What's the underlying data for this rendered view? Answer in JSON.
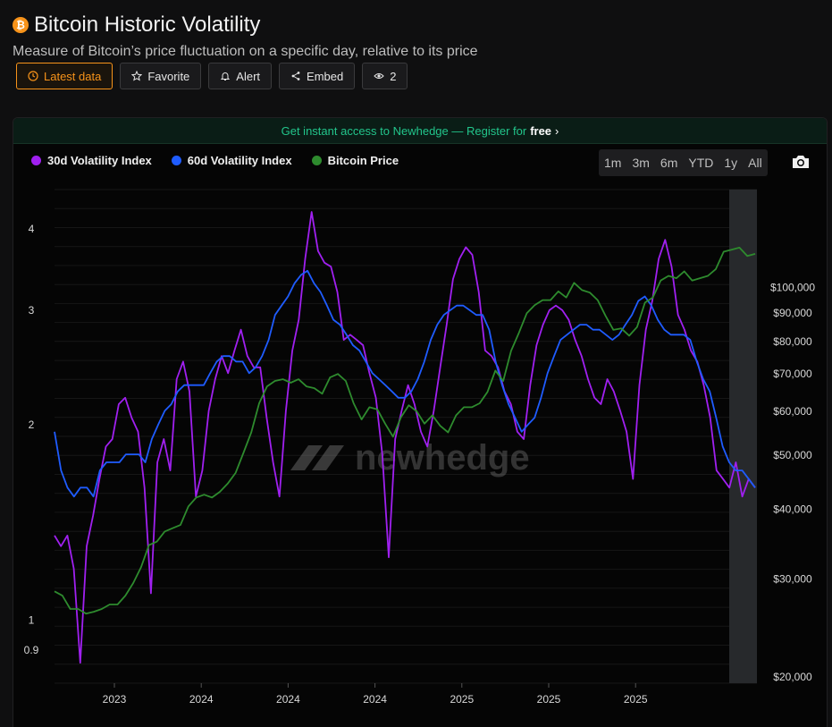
{
  "header": {
    "coin_badge": "₿",
    "title": "Bitcoin Historic Volatility",
    "subtitle": "Measure of Bitcoin’s price fluctuation on a specific day, relative to its price"
  },
  "actions": {
    "latest_data": "Latest data",
    "favorite": "Favorite",
    "alert": "Alert",
    "embed": "Embed",
    "views": "2"
  },
  "banner": {
    "text": "Get instant access to Newhedge — Register for",
    "free": "free",
    "chevron": "›"
  },
  "ranges": [
    "1m",
    "3m",
    "6m",
    "YTD",
    "1y",
    "All"
  ],
  "watermark": "newhedge",
  "colors": {
    "accent": "#f7931a",
    "vol30": "#a020f0",
    "vol60": "#1f5cff",
    "price": "#2e8b2e",
    "banner_text": "#22c58b"
  },
  "chart_data": {
    "type": "line",
    "x_ticks": [
      "2023",
      "2024",
      "2024",
      "2024",
      "2025",
      "2025",
      "2025"
    ],
    "left_axis": {
      "scale": "log",
      "ticks": [
        "0.9",
        "1",
        "2",
        "3",
        "4"
      ]
    },
    "right_axis": {
      "scale": "log",
      "ticks": [
        "$20,000",
        "$30,000",
        "$40,000",
        "$50,000",
        "$60,000",
        "$70,000",
        "$80,000",
        "$90,000",
        "$100,000"
      ]
    },
    "series": [
      {
        "name": "30d Volatility Index",
        "color": "#a020f0",
        "values": [
          1.35,
          1.3,
          1.35,
          1.2,
          0.86,
          1.3,
          1.45,
          1.65,
          1.85,
          1.9,
          2.15,
          2.2,
          2.05,
          1.95,
          1.6,
          1.1,
          1.75,
          1.9,
          1.7,
          2.35,
          2.5,
          2.25,
          1.55,
          1.7,
          2.1,
          2.35,
          2.55,
          2.4,
          2.6,
          2.8,
          2.55,
          2.45,
          2.45,
          2.05,
          1.75,
          1.55,
          2.1,
          2.6,
          2.9,
          3.6,
          4.25,
          3.7,
          3.55,
          3.5,
          3.2,
          2.7,
          2.75,
          2.7,
          2.65,
          2.4,
          2.2,
          1.8,
          1.25,
          1.9,
          2.1,
          2.3,
          2.15,
          1.95,
          1.85,
          2.1,
          2.45,
          2.85,
          3.35,
          3.6,
          3.75,
          3.65,
          3.2,
          2.6,
          2.55,
          2.45,
          2.25,
          2.15,
          1.95,
          1.9,
          2.3,
          2.65,
          2.85,
          3.0,
          3.05,
          3.0,
          2.9,
          2.7,
          2.55,
          2.35,
          2.2,
          2.15,
          2.35,
          2.25,
          2.1,
          1.95,
          1.65,
          2.3,
          2.8,
          3.1,
          3.6,
          3.85,
          3.5,
          2.95,
          2.8,
          2.6,
          2.5,
          2.3,
          2.05,
          1.7,
          1.65,
          1.6,
          1.75,
          1.55,
          1.65,
          1.6
        ],
        "x_range": [
          0,
          1
        ]
      },
      {
        "name": "60d Volatility Index",
        "color": "#1f5cff",
        "values": [
          1.95,
          1.7,
          1.6,
          1.55,
          1.6,
          1.6,
          1.55,
          1.7,
          1.75,
          1.75,
          1.75,
          1.8,
          1.8,
          1.8,
          1.75,
          1.9,
          2.0,
          2.1,
          2.15,
          2.25,
          2.3,
          2.3,
          2.3,
          2.3,
          2.4,
          2.5,
          2.55,
          2.55,
          2.5,
          2.5,
          2.4,
          2.45,
          2.55,
          2.7,
          2.95,
          3.05,
          3.15,
          3.3,
          3.4,
          3.45,
          3.3,
          3.2,
          3.05,
          2.9,
          2.85,
          2.75,
          2.65,
          2.6,
          2.5,
          2.4,
          2.35,
          2.3,
          2.25,
          2.2,
          2.2,
          2.25,
          2.35,
          2.5,
          2.7,
          2.85,
          2.95,
          3.0,
          3.05,
          3.05,
          3.0,
          2.95,
          2.95,
          2.8,
          2.5,
          2.3,
          2.15,
          2.05,
          1.95,
          2.0,
          2.05,
          2.2,
          2.4,
          2.55,
          2.7,
          2.75,
          2.8,
          2.85,
          2.85,
          2.8,
          2.8,
          2.75,
          2.7,
          2.75,
          2.85,
          2.95,
          3.1,
          3.15,
          3.05,
          2.9,
          2.8,
          2.75,
          2.75,
          2.75,
          2.7,
          2.5,
          2.35,
          2.25,
          2.05,
          1.85,
          1.75,
          1.7,
          1.7,
          1.65,
          1.6
        ],
        "x_range": [
          0,
          1
        ]
      },
      {
        "name": "Bitcoin Price",
        "color": "#2e8b2e",
        "values": [
          28500,
          28000,
          26500,
          26500,
          26000,
          26200,
          26500,
          27000,
          27000,
          28000,
          29500,
          31500,
          34500,
          35000,
          36500,
          37000,
          37500,
          40500,
          42000,
          42500,
          42000,
          43000,
          44500,
          46500,
          50500,
          55000,
          62000,
          66500,
          68000,
          68500,
          67500,
          68500,
          66500,
          66000,
          64500,
          69000,
          70000,
          68000,
          62000,
          58000,
          61000,
          60500,
          57000,
          54000,
          58500,
          61500,
          60000,
          57000,
          59000,
          56500,
          55000,
          59000,
          61000,
          61000,
          62000,
          65000,
          71000,
          68000,
          77000,
          83000,
          90000,
          93000,
          95000,
          95000,
          98500,
          96000,
          102000,
          99000,
          98000,
          95000,
          89000,
          84000,
          84500,
          82000,
          85000,
          94000,
          96000,
          103000,
          105000,
          104000,
          107000,
          103000,
          104000,
          105000,
          108000,
          116000,
          117000,
          118000,
          114000,
          115000
        ],
        "x_range": [
          0,
          1
        ]
      }
    ]
  }
}
